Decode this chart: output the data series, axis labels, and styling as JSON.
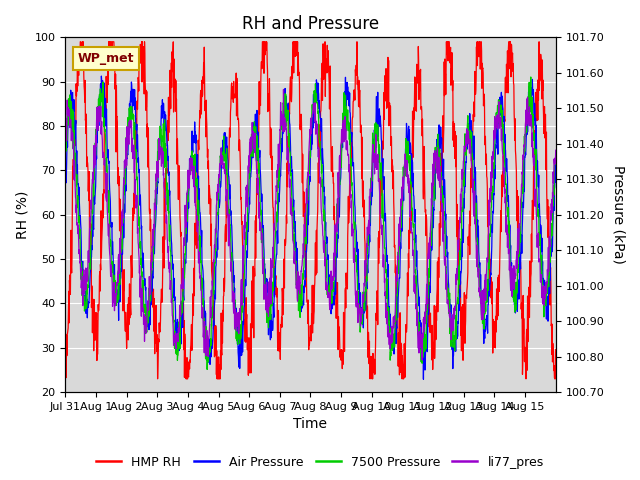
{
  "title": "RH and Pressure",
  "xlabel": "Time",
  "ylabel_left": "RH (%)",
  "ylabel_right": "Pressure (kPa)",
  "ylim_left": [
    20,
    100
  ],
  "ylim_right": [
    100.7,
    101.7
  ],
  "yticks_left": [
    20,
    30,
    40,
    50,
    60,
    70,
    80,
    90,
    100
  ],
  "yticks_right": [
    100.7,
    100.8,
    100.9,
    101.0,
    101.1,
    101.2,
    101.3,
    101.4,
    101.5,
    101.6,
    101.7
  ],
  "xtick_labels": [
    "Jul 31",
    "Aug 1",
    "Aug 2",
    "Aug 3",
    "Aug 4",
    "Aug 5",
    "Aug 6",
    "Aug 7",
    "Aug 8",
    "Aug 9",
    "Aug 10",
    "Aug 11",
    "Aug 12",
    "Aug 13",
    "Aug 14",
    "Aug 15"
  ],
  "xtick_positions": [
    0,
    1,
    2,
    3,
    4,
    5,
    6,
    7,
    8,
    9,
    10,
    11,
    12,
    13,
    14,
    15
  ],
  "annotation_text": "WP_met",
  "annotation_facecolor": "#ffffcc",
  "annotation_edgecolor": "#c8a000",
  "background_color": "#d9d9d9",
  "line_colors": [
    "#ff0000",
    "#0000ff",
    "#00cc00",
    "#9900cc"
  ],
  "line_labels": [
    "HMP RH",
    "Air Pressure",
    "7500 Pressure",
    "li77_pres"
  ],
  "line_width": 0.9,
  "title_fontsize": 12,
  "axis_fontsize": 10,
  "tick_fontsize": 8,
  "legend_fontsize": 9
}
